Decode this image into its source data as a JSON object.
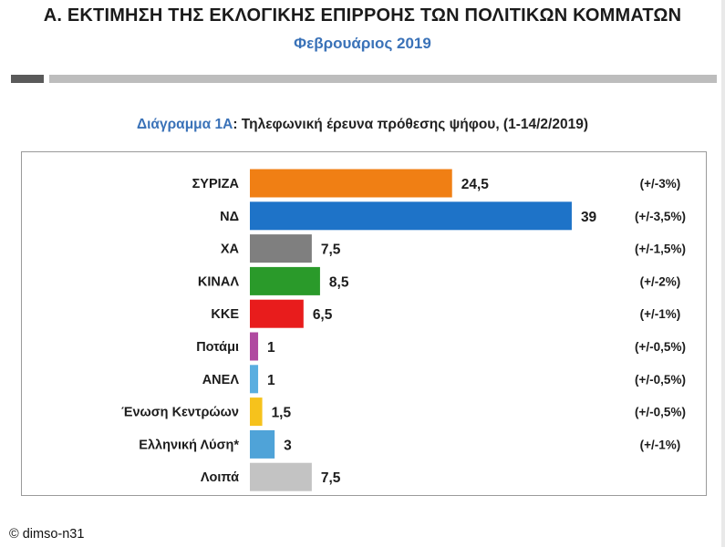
{
  "header": {
    "title": "Α. ΕΚΤΙΜΗΣΗ ΤΗΣ ΕΚΛΟΓΙΚΗΣ ΕΠΙΡΡΟΗΣ ΤΩΝ ΠΟΛΙΤΙΚΩΝ ΚΟΜΜΑΤΩΝ",
    "subtitle": "Φεβρουάριος 2019"
  },
  "caption": {
    "lead": "Διάγραμμα 1Α",
    "text": ": Τηλεφωνική έρευνα πρόθεσης ψήφου,  (1-14/2/2019)"
  },
  "footer": {
    "copyright": "© dimso-n31"
  },
  "chart_data": {
    "type": "bar",
    "orientation": "horizontal",
    "title": "Διάγραμμα 1Α: Τηλεφωνική έρευνα πρόθεσης ψήφου,  (1-14/2/2019)",
    "categories": [
      "ΣΥΡΙΖΑ",
      "ΝΔ",
      "ΧΑ",
      "ΚΙΝΑΛ",
      "ΚΚΕ",
      "Ποτάμι",
      "ΑΝΕΛ",
      "Ένωση Κεντρώων",
      "Ελληνική Λύση*",
      "Λοιπά"
    ],
    "values": [
      24.5,
      39,
      7.5,
      8.5,
      6.5,
      1,
      1,
      1.5,
      3,
      7.5
    ],
    "value_labels": [
      "24,5",
      "39",
      "7,5",
      "8,5",
      "6,5",
      "1",
      "1",
      "1,5",
      "3",
      "7,5"
    ],
    "margins": [
      "(+/-3%)",
      "(+/-3,5%)",
      "(+/-1,5%)",
      "(+/-2%)",
      "(+/-1%)",
      "(+/-0,5%)",
      "(+/-0,5%)",
      "(+/-0,5%)",
      "(+/-1%)",
      ""
    ],
    "colors": [
      "#f07f14",
      "#1e73c8",
      "#7f7f7f",
      "#2a9a2a",
      "#e81c1c",
      "#b04aa0",
      "#5aaee0",
      "#f6c21c",
      "#4fa3d8",
      "#c3c3c3"
    ],
    "xlim": [
      0,
      39
    ],
    "grid": false,
    "legend": "none"
  }
}
